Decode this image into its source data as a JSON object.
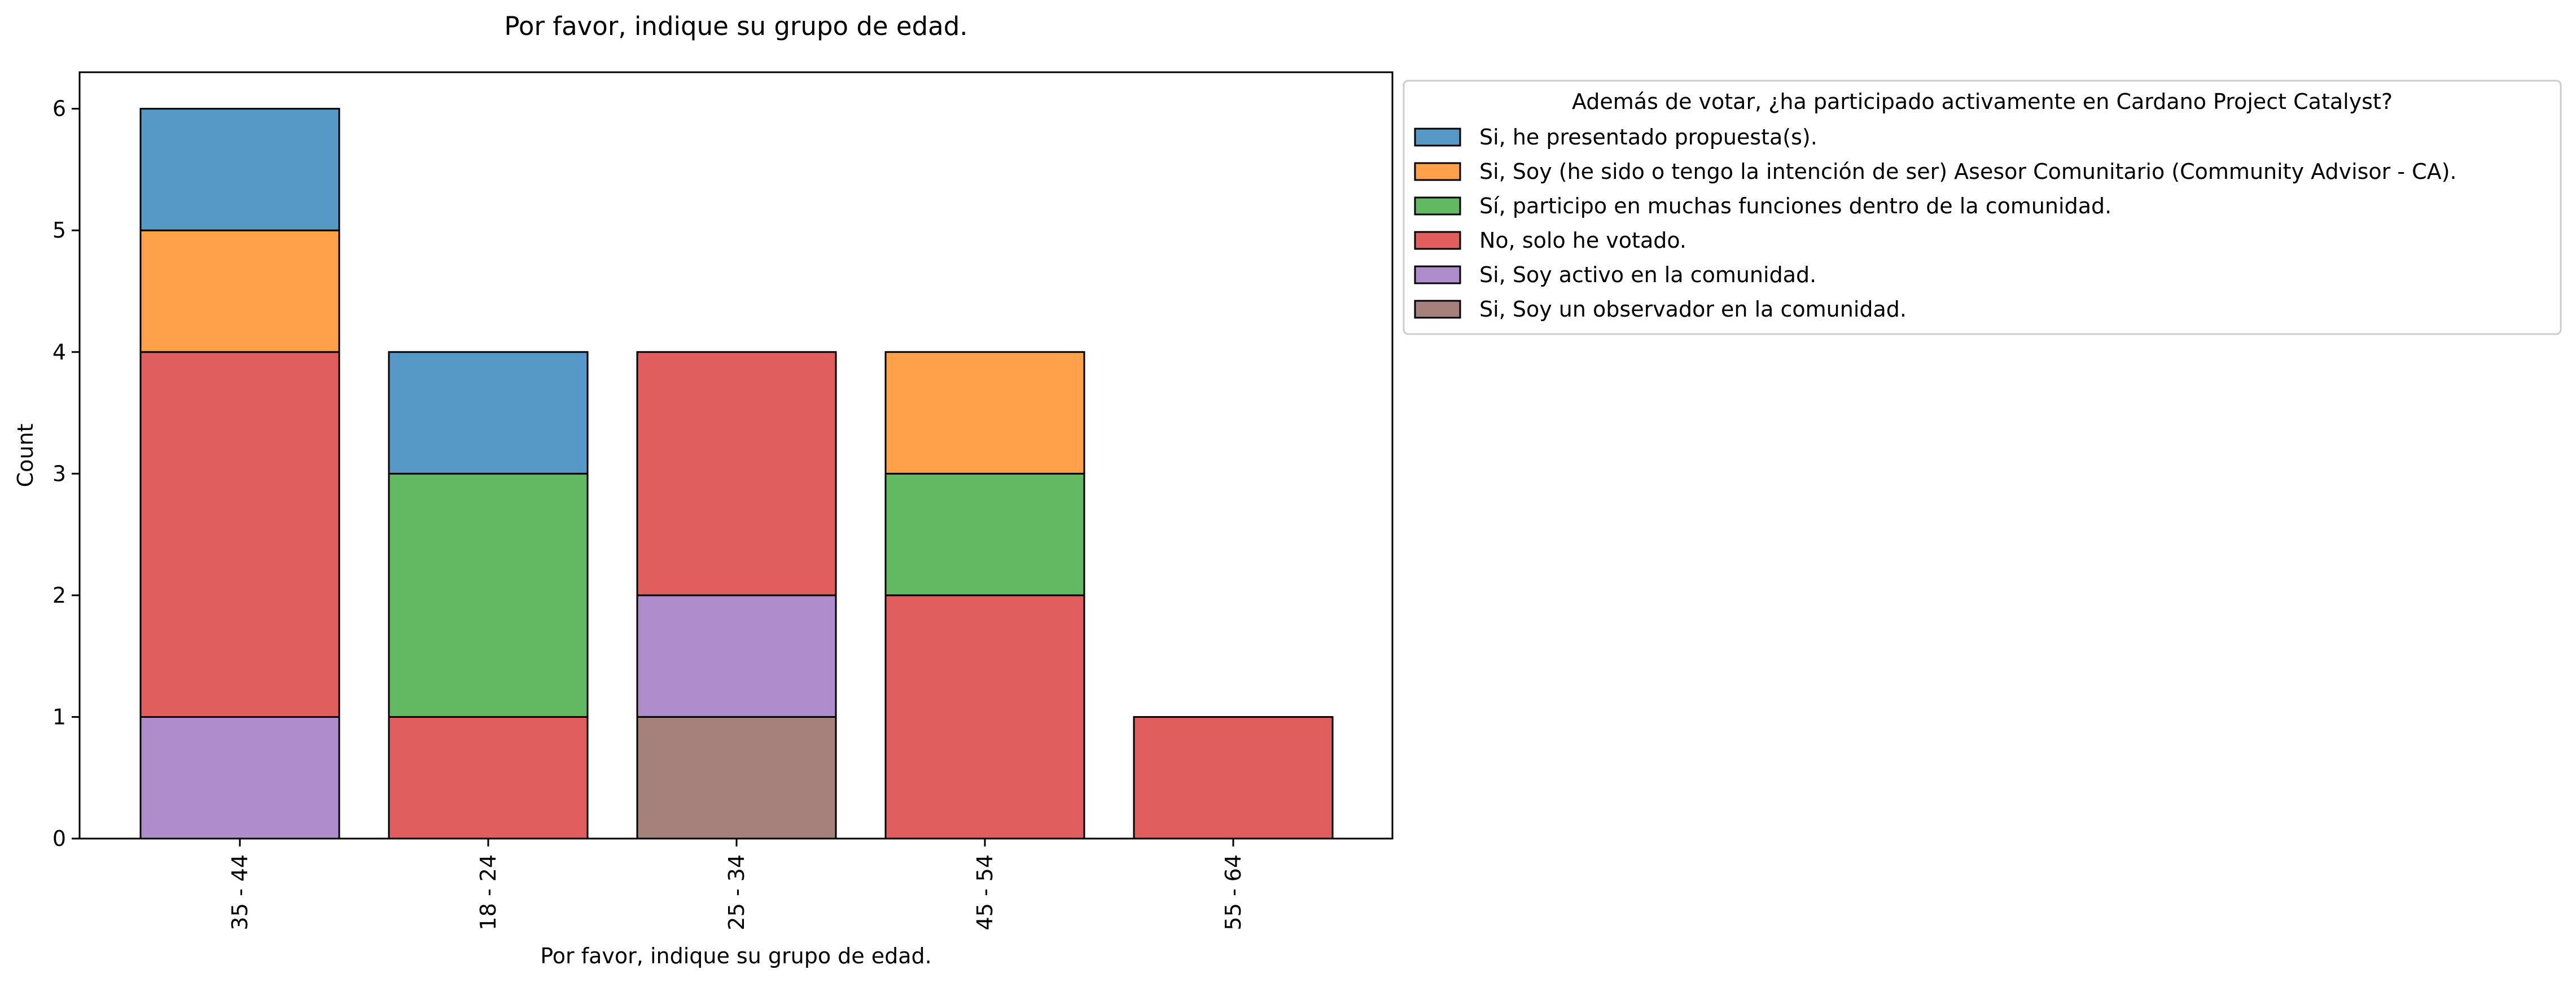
{
  "chart_data": {
    "type": "bar",
    "stacked": true,
    "title": "Por favor, indique su grupo de edad.",
    "xlabel": "Por favor, indique su grupo de edad.",
    "ylabel": "Count",
    "ylim": [
      0,
      6.3
    ],
    "yticks": [
      0,
      1,
      2,
      3,
      4,
      5,
      6
    ],
    "grid": false,
    "categories": [
      "35 - 44",
      "18 - 24",
      "25 - 34",
      "45 - 54",
      "55 - 64"
    ],
    "legend": {
      "title": "Además de votar, ¿ha participado activamente en Cardano Project Catalyst?",
      "placement": "outside-top-right"
    },
    "series": [
      {
        "name": "Si, Soy un observador en la comunidad.",
        "color": "#a6807a",
        "values": [
          0,
          0,
          1,
          0,
          0
        ]
      },
      {
        "name": "Si, Soy activo en la comunidad.",
        "color": "#af8dcc",
        "values": [
          1,
          0,
          1,
          0,
          0
        ]
      },
      {
        "name": "No, solo he votado.",
        "color": "#e05e5e",
        "values": [
          3,
          1,
          2,
          2,
          1
        ]
      },
      {
        "name": "Sí, participo en muchas funciones dentro de la comunidad.",
        "color": "#63b962",
        "values": [
          0,
          2,
          0,
          1,
          0
        ]
      },
      {
        "name": "Si, Soy (he sido o tengo la intención de ser) Asesor Comunitario (Community Advisor - CA).",
        "color": "#fea14a",
        "values": [
          1,
          0,
          0,
          1,
          0
        ]
      },
      {
        "name": "Si, he presentado propuesta(s).",
        "color": "#5699c6",
        "values": [
          1,
          1,
          0,
          0,
          0
        ]
      }
    ],
    "legend_order": [
      5,
      4,
      3,
      2,
      1,
      0
    ]
  }
}
